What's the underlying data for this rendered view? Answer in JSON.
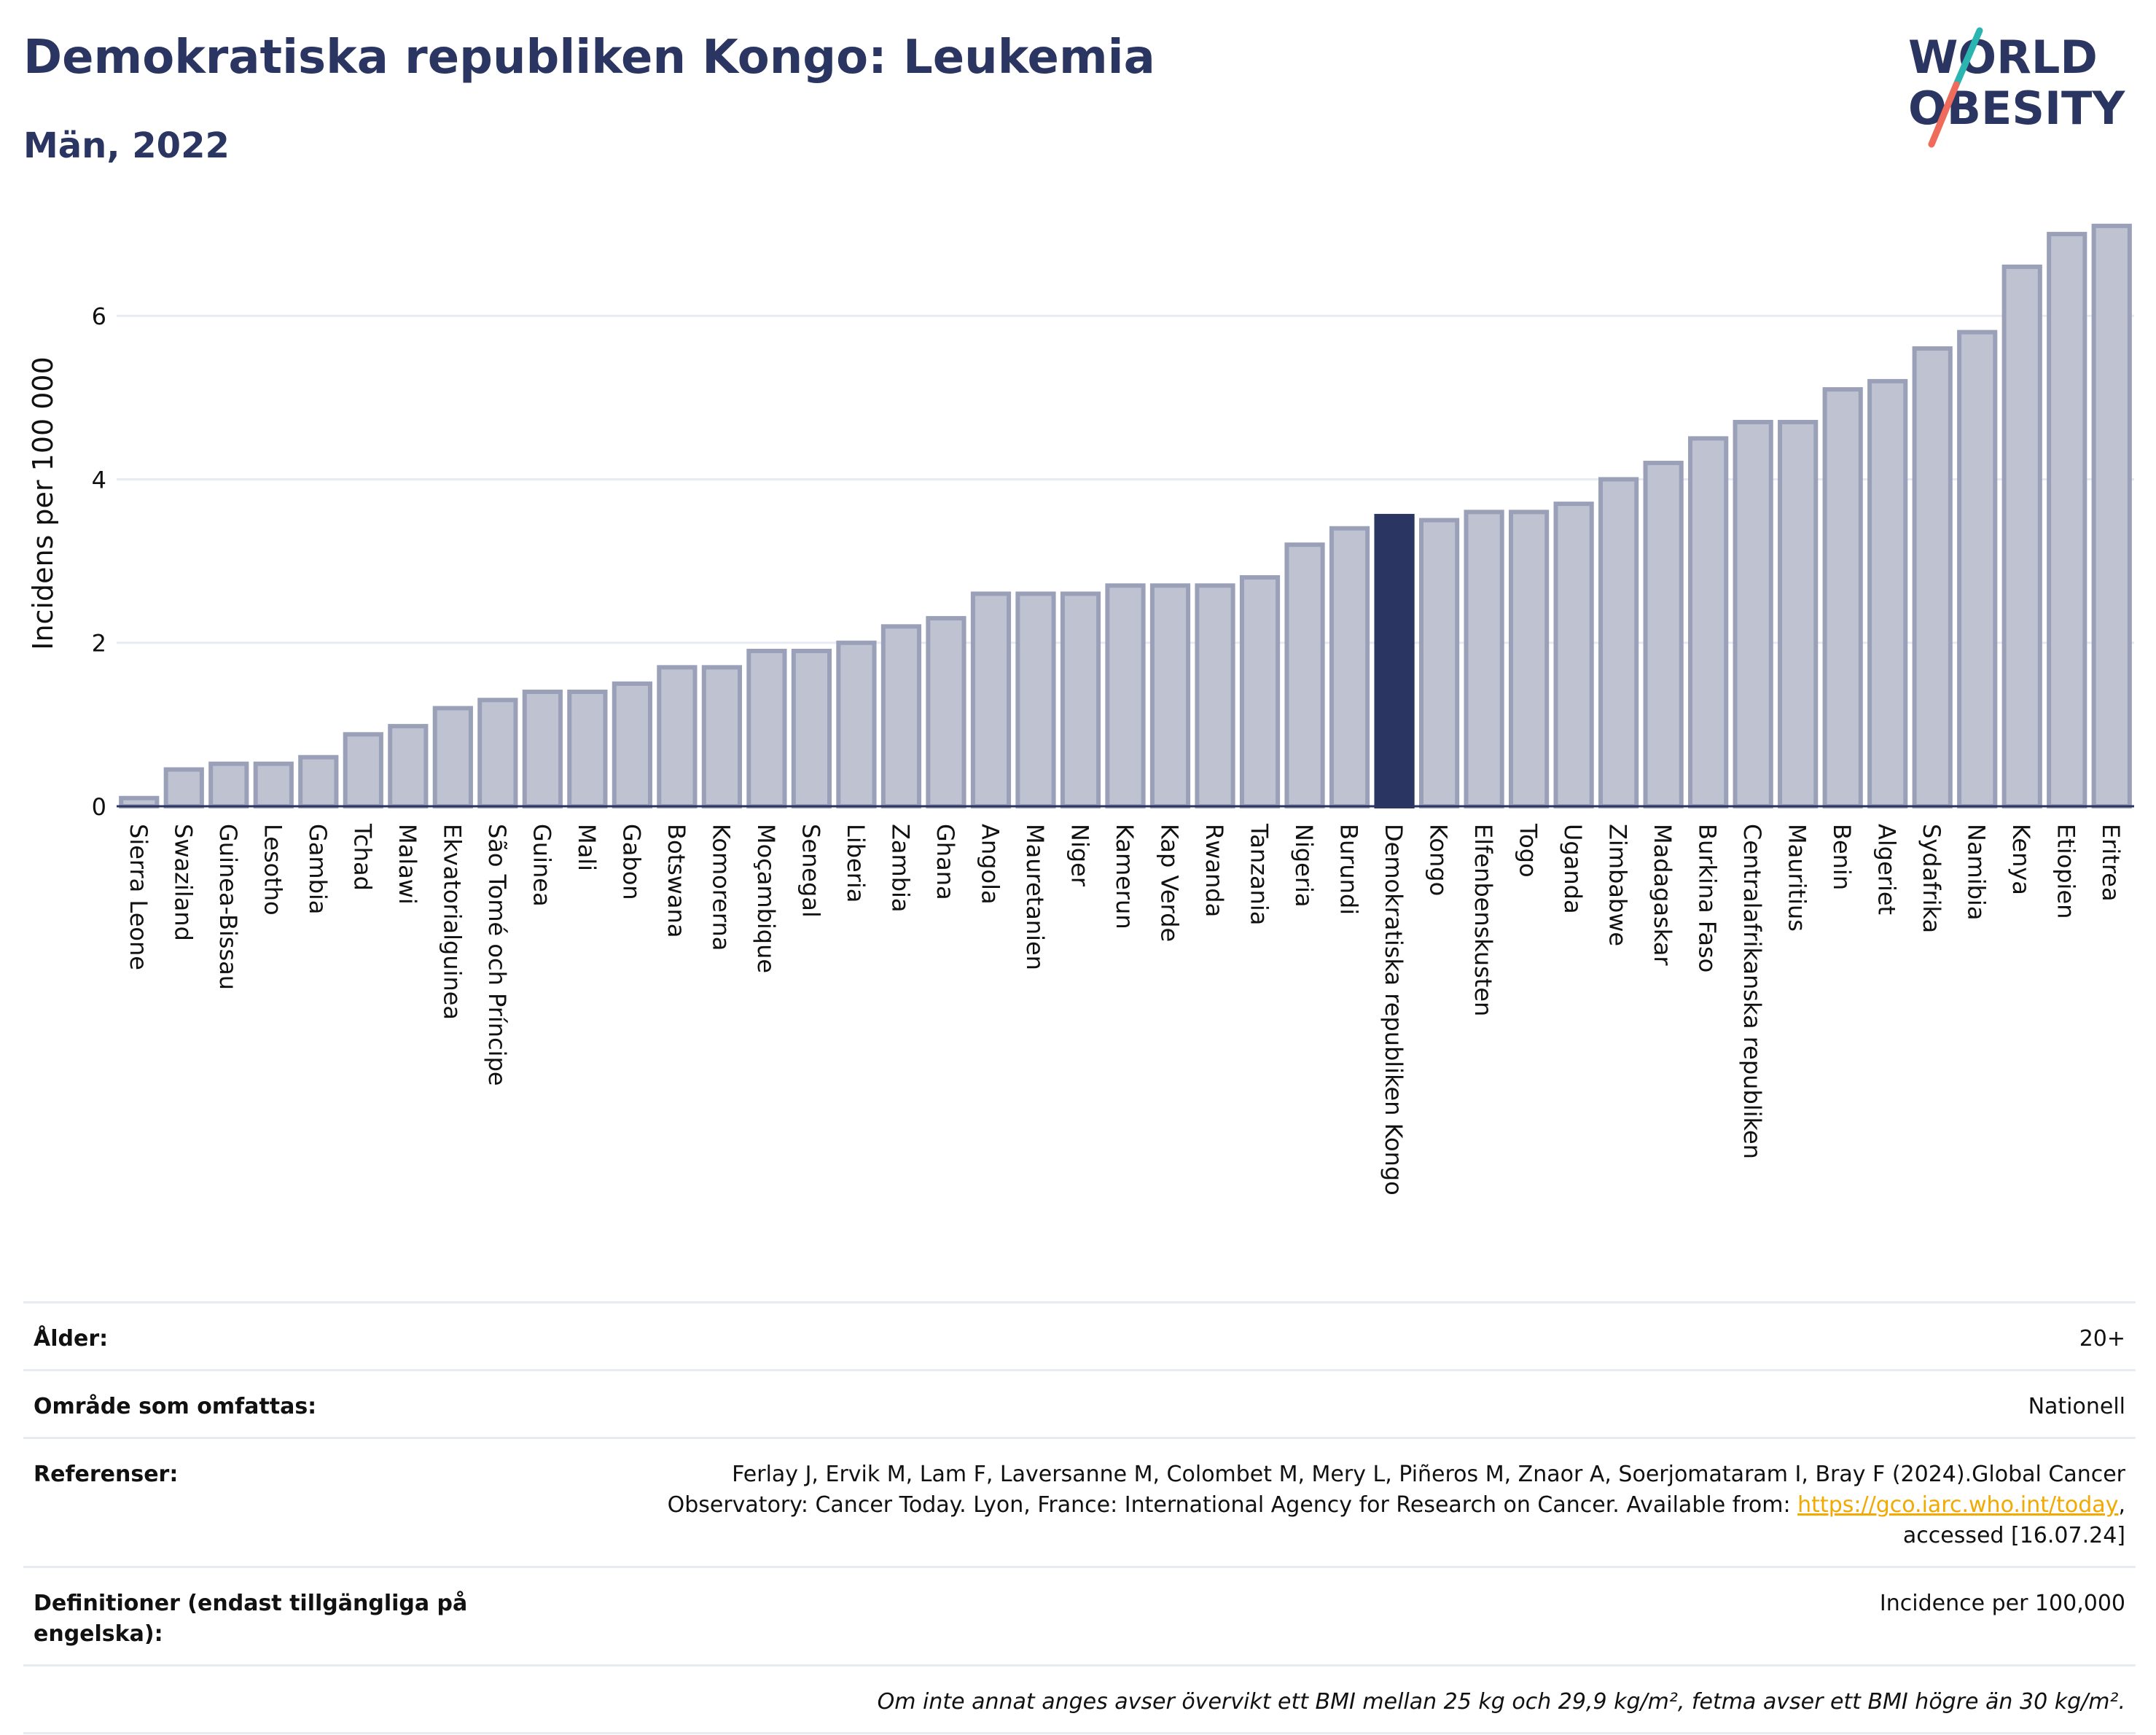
{
  "header": {
    "title": "Demokratiska republiken Kongo: Leukemia",
    "subtitle": "Män, 2022"
  },
  "logo": {
    "line1": "WORLD",
    "line2": "OBESITY"
  },
  "colors": {
    "title": "#2b3561",
    "bar": "#bfc3d1",
    "bar_stroke": "#9aa0b8",
    "highlight": "#2b3561",
    "grid": "#e8ebf2",
    "link": "#f2a900"
  },
  "chart_data": {
    "type": "bar",
    "ylabel": "Incidens per 100 000",
    "ylim": [
      0,
      7.5
    ],
    "yticks": [
      0,
      2,
      4,
      6
    ],
    "highlight": "Demokratiska republiken Kongo",
    "categories": [
      "Sierra Leone",
      "Swaziland",
      "Guinea-Bissau",
      "Lesotho",
      "Gambia",
      "Tchad",
      "Malawi",
      "Ekvatorialguinea",
      "São Tomé och Príncipe",
      "Guinea",
      "Mali",
      "Gabon",
      "Botswana",
      "Komorerna",
      "Moçambique",
      "Senegal",
      "Liberia",
      "Zambia",
      "Ghana",
      "Angola",
      "Mauretanien",
      "Niger",
      "Kamerun",
      "Kap Verde",
      "Rwanda",
      "Tanzania",
      "Nigeria",
      "Burundi",
      "Demokratiska republiken Kongo",
      "Kongo",
      "Elfenbenskusten",
      "Togo",
      "Uganda",
      "Zimbabwe",
      "Madagaskar",
      "Burkina Faso",
      "Centralafrikanska republiken",
      "Mauritius",
      "Benin",
      "Algeriet",
      "Sydafrika",
      "Namibia",
      "Kenya",
      "Etiopien",
      "Eritrea"
    ],
    "values": [
      0.1,
      0.45,
      0.52,
      0.52,
      0.6,
      0.88,
      0.98,
      1.2,
      1.3,
      1.4,
      1.4,
      1.5,
      1.7,
      1.7,
      1.9,
      1.9,
      2.0,
      2.2,
      2.3,
      2.6,
      2.6,
      2.6,
      2.7,
      2.7,
      2.7,
      2.8,
      3.2,
      3.4,
      3.55,
      3.5,
      3.6,
      3.6,
      3.7,
      4.0,
      4.2,
      4.5,
      4.7,
      4.7,
      5.1,
      5.2,
      5.6,
      5.8,
      6.6,
      7.0,
      7.1
    ]
  },
  "info": {
    "age_label": "Ålder:",
    "age_value": "20+",
    "area_label": "Område som omfattas:",
    "area_value": "Nationell",
    "refs_label": "Referenser:",
    "refs_text": "Ferlay J, Ervik M, Lam F, Laversanne M, Colombet M, Mery L, Piñeros M, Znaor A, Soerjomataram I, Bray F (2024).Global Cancer Observatory: Cancer Today. Lyon, France: International Agency for Research on Cancer. Available from: ",
    "refs_link": "https://gco.iarc.who.int/today",
    "refs_suffix": ", accessed [16.07.24]",
    "defs_label": "Definitioner (endast tillgängliga på engelska):",
    "defs_value": "Incidence per 100,000",
    "note": "Om inte annat anges avser övervikt ett BMI mellan 25 kg och 29,9 kg/m², fetma avser ett BMI högre än 30 kg/m²."
  }
}
